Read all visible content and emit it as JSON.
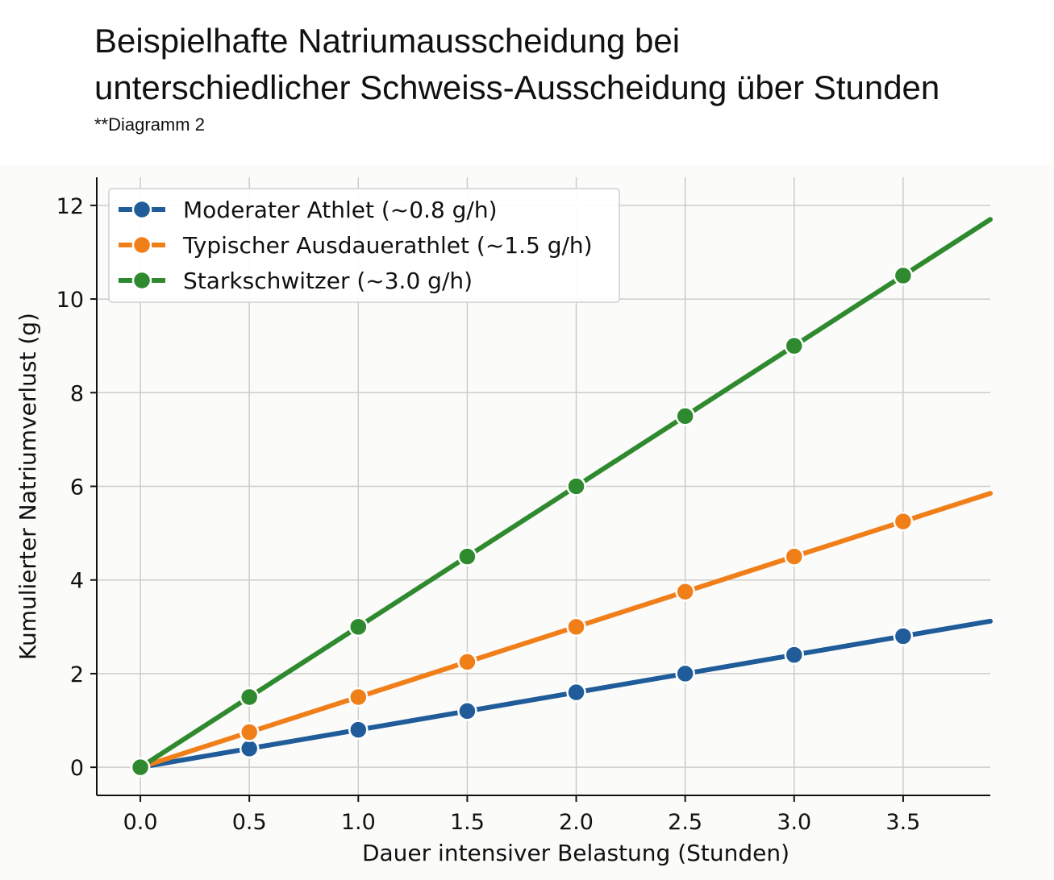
{
  "title": {
    "line1": "Beispielhafte Natriumausscheidung bei",
    "line2": "unterschiedlicher Schweiss-Ausscheidung über Stunden",
    "subtitle": "**Diagramm 2"
  },
  "chart_data": {
    "type": "line",
    "xlabel": "Dauer intensiver Belastung (Stunden)",
    "ylabel": "Kumulierter Natriumverlust (g)",
    "xlim": [
      -0.2,
      3.9
    ],
    "ylim": [
      -0.6,
      12.6
    ],
    "x_ticks": [
      "0.0",
      "0.5",
      "1.0",
      "1.5",
      "2.0",
      "2.5",
      "3.0",
      "3.5"
    ],
    "y_ticks": [
      "0",
      "2",
      "4",
      "6",
      "8",
      "10",
      "12"
    ],
    "grid": true,
    "legend_position": "top-left",
    "x": [
      0.0,
      0.5,
      1.0,
      1.5,
      2.0,
      2.5,
      3.0,
      3.5
    ],
    "series": [
      {
        "name": "Moderater Athlet (~0.8 g/h)",
        "color": "#1f5c99",
        "values": [
          0.0,
          0.4,
          0.8,
          1.2,
          1.6,
          2.0,
          2.4,
          2.8
        ],
        "line_end": [
          3.9,
          3.12
        ]
      },
      {
        "name": "Typischer Ausdauerathlet (~1.5 g/h)",
        "color": "#f07f1a",
        "values": [
          0.0,
          0.75,
          1.5,
          2.25,
          3.0,
          3.75,
          4.5,
          5.25
        ],
        "line_end": [
          3.9,
          5.85
        ]
      },
      {
        "name": "Starkschwitzer (~3.0 g/h)",
        "color": "#2f8a2f",
        "values": [
          0.0,
          1.5,
          3.0,
          4.5,
          6.0,
          7.5,
          9.0,
          10.5
        ],
        "line_end": [
          3.9,
          11.7
        ]
      }
    ]
  }
}
